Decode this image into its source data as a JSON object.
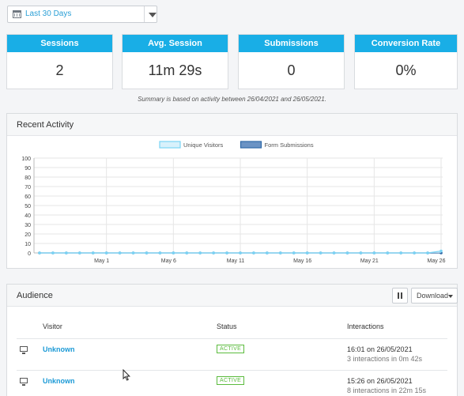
{
  "date_range": {
    "label": "Last 30 Days"
  },
  "metrics": [
    {
      "title": "Sessions",
      "value": "2"
    },
    {
      "title": "Avg. Session",
      "value": "11m 29s"
    },
    {
      "title": "Submissions",
      "value": "0"
    },
    {
      "title": "Conversion Rate",
      "value": "0%"
    }
  ],
  "summary": "Summary is based on activity between 26/04/2021 and 26/05/2021.",
  "recent_activity": {
    "title": "Recent Activity"
  },
  "chart_data": {
    "type": "area",
    "title": "",
    "xlabel": "",
    "ylabel": "",
    "ylim": [
      0,
      100
    ],
    "yticks": [
      0,
      10,
      20,
      30,
      40,
      50,
      60,
      70,
      80,
      90,
      100
    ],
    "x": [
      "Apr 26",
      "Apr 27",
      "Apr 28",
      "Apr 29",
      "Apr 30",
      "May 1",
      "May 2",
      "May 3",
      "May 4",
      "May 5",
      "May 6",
      "May 7",
      "May 8",
      "May 9",
      "May 10",
      "May 11",
      "May 12",
      "May 13",
      "May 14",
      "May 15",
      "May 16",
      "May 17",
      "May 18",
      "May 19",
      "May 20",
      "May 21",
      "May 22",
      "May 23",
      "May 24",
      "May 25",
      "May 26"
    ],
    "xtick_labels": [
      "May 1",
      "May 6",
      "May 11",
      "May 16",
      "May 21",
      "May 26"
    ],
    "grid": true,
    "legend_position": "top-center",
    "series": [
      {
        "name": "Unique Visitors",
        "color": "#7ad4f5",
        "fill": "#d8f1fb",
        "values": [
          0,
          0,
          0,
          0,
          0,
          0,
          0,
          0,
          0,
          0,
          0,
          0,
          0,
          0,
          0,
          0,
          0,
          0,
          0,
          0,
          0,
          0,
          0,
          0,
          0,
          0,
          0,
          0,
          0,
          0,
          2
        ]
      },
      {
        "name": "Form Submissions",
        "color": "#2f69a8",
        "fill": "#6b93c4",
        "values": [
          0,
          0,
          0,
          0,
          0,
          0,
          0,
          0,
          0,
          0,
          0,
          0,
          0,
          0,
          0,
          0,
          0,
          0,
          0,
          0,
          0,
          0,
          0,
          0,
          0,
          0,
          0,
          0,
          0,
          0,
          0
        ]
      }
    ]
  },
  "audience": {
    "title": "Audience",
    "download_label": "Download",
    "columns": [
      "Visitor",
      "Status",
      "Interactions"
    ],
    "rows": [
      {
        "visitor": "Unknown",
        "status": "ACTIVE",
        "time": "16:01 on 26/05/2021",
        "detail": "3 interactions in 0m 42s"
      },
      {
        "visitor": "Unknown",
        "status": "ACTIVE",
        "time": "15:26 on 26/05/2021",
        "detail": "8 interactions in 22m 15s"
      }
    ]
  }
}
